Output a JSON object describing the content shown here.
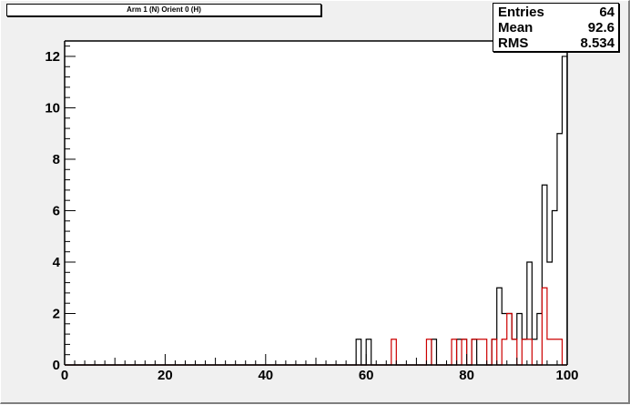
{
  "title": "Arm 1 (N) Orient 0 (H)",
  "stats": {
    "rows": [
      {
        "label": "Entries",
        "value": "64"
      },
      {
        "label": "Mean",
        "value": "92.6"
      },
      {
        "label": "RMS",
        "value": "8.534"
      }
    ]
  },
  "chart_data": {
    "type": "histogram",
    "xlim": [
      0,
      100
    ],
    "ylim": [
      0,
      12.6
    ],
    "bin_width": 1,
    "x_tick_labels": [
      "0",
      "20",
      "40",
      "60",
      "80",
      "100"
    ],
    "y_tick_labels": [
      "0",
      "2",
      "4",
      "6",
      "8",
      "10",
      "12"
    ],
    "series": [
      {
        "color": "#000000",
        "bins": [
          {
            "x": 58,
            "y": 1
          },
          {
            "x": 60,
            "y": 1
          },
          {
            "x": 73,
            "y": 1
          },
          {
            "x": 78,
            "y": 1
          },
          {
            "x": 79,
            "y": 1
          },
          {
            "x": 81,
            "y": 1
          },
          {
            "x": 85,
            "y": 1
          },
          {
            "x": 86,
            "y": 3
          },
          {
            "x": 87,
            "y": 2
          },
          {
            "x": 88,
            "y": 2
          },
          {
            "x": 89,
            "y": 1
          },
          {
            "x": 90,
            "y": 2
          },
          {
            "x": 91,
            "y": 1
          },
          {
            "x": 92,
            "y": 4
          },
          {
            "x": 93,
            "y": 1
          },
          {
            "x": 94,
            "y": 2
          },
          {
            "x": 95,
            "y": 7
          },
          {
            "x": 96,
            "y": 4
          },
          {
            "x": 97,
            "y": 6
          },
          {
            "x": 98,
            "y": 9
          },
          {
            "x": 99,
            "y": 12
          },
          {
            "x": 100,
            "y": 1
          }
        ]
      },
      {
        "color": "#cc0000",
        "bins": [
          {
            "x": 65,
            "y": 1
          },
          {
            "x": 72,
            "y": 1
          },
          {
            "x": 77,
            "y": 1
          },
          {
            "x": 79,
            "y": 1
          },
          {
            "x": 81,
            "y": 1
          },
          {
            "x": 82,
            "y": 1
          },
          {
            "x": 83,
            "y": 1
          },
          {
            "x": 85,
            "y": 1
          },
          {
            "x": 87,
            "y": 1
          },
          {
            "x": 88,
            "y": 2
          },
          {
            "x": 89,
            "y": 1
          },
          {
            "x": 91,
            "y": 1
          },
          {
            "x": 92,
            "y": 1
          },
          {
            "x": 95,
            "y": 3
          },
          {
            "x": 96,
            "y": 1
          },
          {
            "x": 97,
            "y": 1
          },
          {
            "x": 98,
            "y": 1
          }
        ]
      }
    ],
    "grid": false,
    "stats_box_placement": "top-right"
  }
}
